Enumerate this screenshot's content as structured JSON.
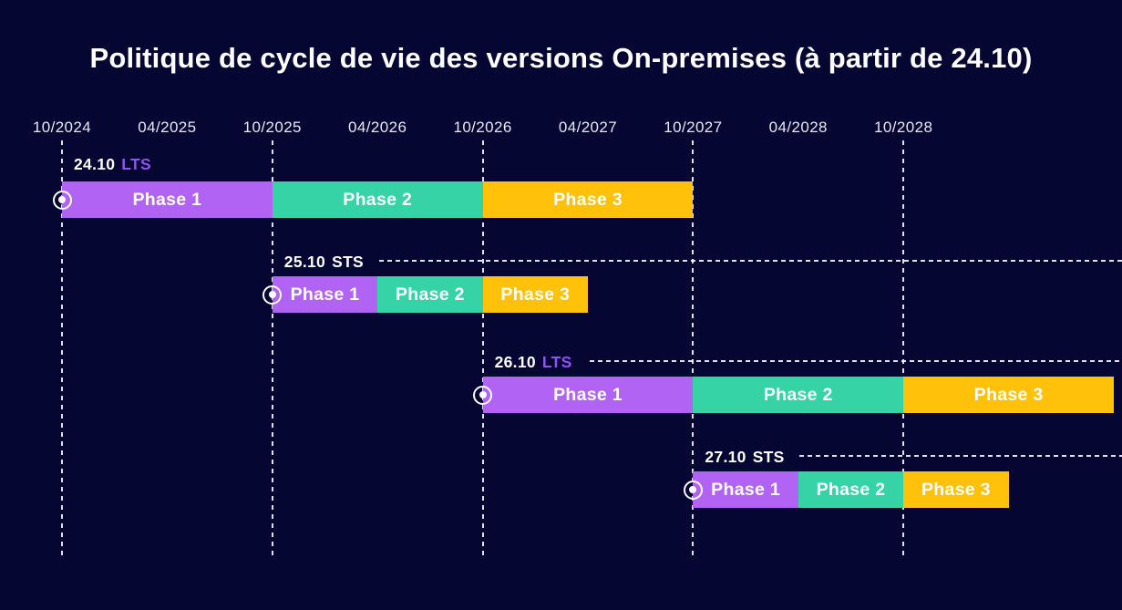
{
  "title": "Politique de cycle de vie des versions On-premises (à partir de 24.10)",
  "colors": {
    "background": "#060633",
    "title_text": "#ffffff",
    "axis_text": "#e9e7f2",
    "gridline": "#ffffff",
    "phase1": "#b164f4",
    "phase2": "#35d3a5",
    "phase3": "#ffc10a",
    "lts_text": "#8f52f3",
    "sts_text": "#ffffff"
  },
  "chart_data": {
    "type": "gantt",
    "title": "Politique de cycle de vie des versions On-premises (à partir de 24.10)",
    "x_axis": {
      "tick_labels": [
        "10/2024",
        "04/2025",
        "10/2025",
        "04/2026",
        "10/2026",
        "04/2027",
        "10/2027",
        "04/2028",
        "10/2028"
      ],
      "gridlines_at": [
        "10/2024",
        "10/2025",
        "10/2026",
        "10/2027",
        "10/2028"
      ],
      "tick_interval_months": 6
    },
    "phase_colors": {
      "Phase 1": "#b164f4",
      "Phase 2": "#35d3a5",
      "Phase 3": "#ffc10a"
    },
    "channel_colors": {
      "LTS": "#8f52f3",
      "STS": "#ffffff"
    },
    "rows": [
      {
        "version": "24.10",
        "channel": "LTS",
        "start": "10/2024",
        "trailing_dashed_line": false,
        "phases": [
          {
            "label": "Phase 1",
            "start": "10/2024",
            "end": "10/2025",
            "months": 12
          },
          {
            "label": "Phase 2",
            "start": "10/2025",
            "end": "10/2026",
            "months": 12
          },
          {
            "label": "Phase 3",
            "start": "10/2026",
            "end": "10/2027",
            "months": 12
          }
        ]
      },
      {
        "version": "25.10",
        "channel": "STS",
        "start": "10/2025",
        "trailing_dashed_line": true,
        "phases": [
          {
            "label": "Phase 1",
            "start": "10/2025",
            "end": "04/2026",
            "months": 6
          },
          {
            "label": "Phase 2",
            "start": "04/2026",
            "end": "10/2026",
            "months": 6
          },
          {
            "label": "Phase 3",
            "start": "10/2026",
            "end": "04/2027",
            "months": 6
          }
        ]
      },
      {
        "version": "26.10",
        "channel": "LTS",
        "start": "10/2026",
        "trailing_dashed_line": true,
        "phases": [
          {
            "label": "Phase 1",
            "start": "10/2026",
            "end": "10/2027",
            "months": 12
          },
          {
            "label": "Phase 2",
            "start": "10/2027",
            "end": "10/2028",
            "months": 12
          },
          {
            "label": "Phase 3",
            "start": "10/2028",
            "end": "10/2029",
            "months": 12
          }
        ]
      },
      {
        "version": "27.10",
        "channel": "STS",
        "start": "10/2027",
        "trailing_dashed_line": true,
        "phases": [
          {
            "label": "Phase 1",
            "start": "10/2027",
            "end": "04/2028",
            "months": 6
          },
          {
            "label": "Phase 2",
            "start": "04/2028",
            "end": "10/2028",
            "months": 6
          },
          {
            "label": "Phase 3",
            "start": "10/2028",
            "end": "04/2029",
            "months": 6
          }
        ]
      }
    ]
  }
}
